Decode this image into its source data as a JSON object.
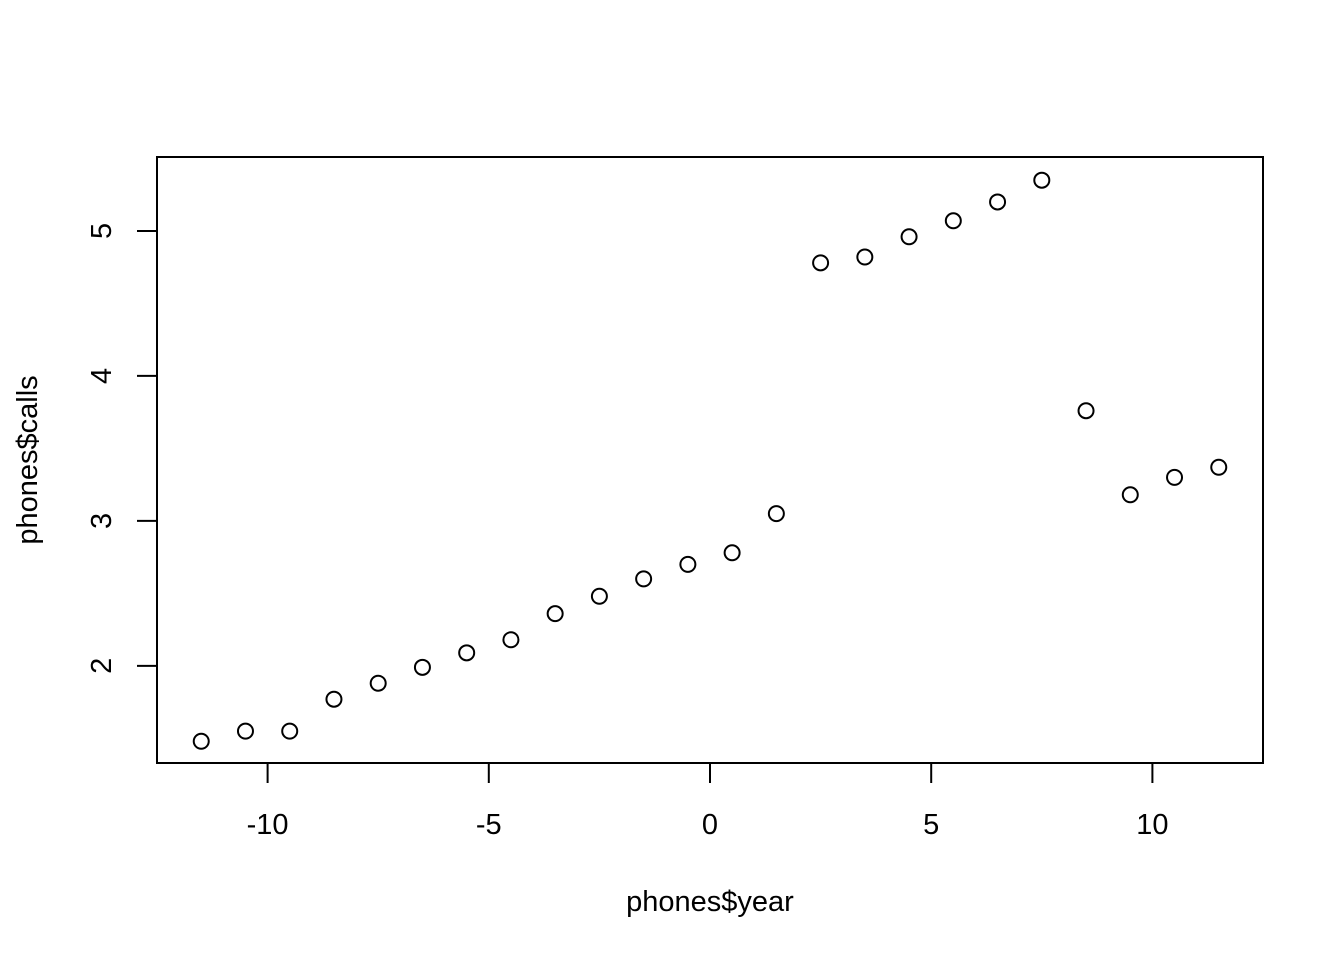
{
  "chart_data": {
    "type": "scatter",
    "title": "",
    "xlabel": "phones$year",
    "ylabel": "phones$calls",
    "xlim": [
      -12.5,
      12.5
    ],
    "ylim": [
      1.33,
      5.51
    ],
    "x_ticks": [
      -10,
      -5,
      0,
      5,
      10
    ],
    "x_tick_labels": [
      "-10",
      "-5",
      "0",
      "5",
      "10"
    ],
    "y_ticks": [
      2,
      3,
      4,
      5
    ],
    "y_tick_labels": [
      "2",
      "3",
      "4",
      "5"
    ],
    "grid": false,
    "marker": "open-circle",
    "x": [
      -11.5,
      -10.5,
      -9.5,
      -8.5,
      -7.5,
      -6.5,
      -5.5,
      -4.5,
      -3.5,
      -2.5,
      -1.5,
      -0.5,
      0.5,
      1.5,
      2.5,
      3.5,
      4.5,
      5.5,
      6.5,
      7.5,
      8.5,
      9.5,
      10.5,
      11.5
    ],
    "y": [
      1.48,
      1.55,
      1.55,
      1.77,
      1.88,
      1.99,
      2.09,
      2.18,
      2.36,
      2.48,
      2.6,
      2.7,
      2.78,
      3.05,
      4.78,
      4.82,
      4.96,
      5.07,
      5.2,
      5.35,
      3.76,
      3.18,
      3.3,
      3.37
    ]
  },
  "colors": {
    "foreground": "#000000",
    "background": "#ffffff"
  }
}
